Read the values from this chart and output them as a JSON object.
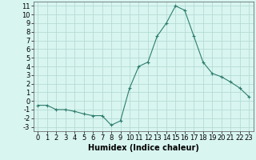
{
  "x": [
    0,
    1,
    2,
    3,
    4,
    5,
    6,
    7,
    8,
    9,
    10,
    11,
    12,
    13,
    14,
    15,
    16,
    17,
    18,
    19,
    20,
    21,
    22,
    23
  ],
  "y": [
    -0.5,
    -0.5,
    -1.0,
    -1.0,
    -1.2,
    -1.5,
    -1.7,
    -1.7,
    -2.8,
    -2.3,
    1.5,
    4.0,
    4.5,
    7.5,
    9.0,
    11.0,
    10.5,
    7.5,
    4.5,
    3.2,
    2.8,
    2.2,
    1.5,
    0.5
  ],
  "line_color": "#2e7d6e",
  "marker": "+",
  "markersize": 3,
  "linewidth": 0.8,
  "background_color": "#d8f5f0",
  "grid_color": "#b0d8d0",
  "xlabel": "Humidex (Indice chaleur)",
  "xlim": [
    -0.5,
    23.5
  ],
  "ylim": [
    -3.5,
    11.5
  ],
  "xticks": [
    0,
    1,
    2,
    3,
    4,
    5,
    6,
    7,
    8,
    9,
    10,
    11,
    12,
    13,
    14,
    15,
    16,
    17,
    18,
    19,
    20,
    21,
    22,
    23
  ],
  "yticks": [
    -3,
    -2,
    -1,
    0,
    1,
    2,
    3,
    4,
    5,
    6,
    7,
    8,
    9,
    10,
    11
  ],
  "xlabel_fontsize": 7,
  "tick_fontsize": 6
}
